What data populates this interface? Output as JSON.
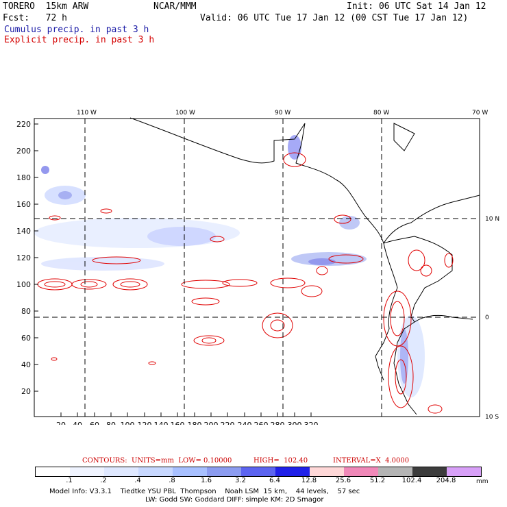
{
  "header": {
    "model": "TORERO  15km ARW",
    "org": "NCAR/MMM",
    "init": "Init: 06 UTC Sat 14 Jan 12",
    "fcst": "Fcst:   72 h",
    "valid": "Valid: 06 UTC Tue 17 Jan 12 (00 CST Tue 17 Jan 12)",
    "line_cumulus": "Cumulus precip. in past 3 h",
    "line_explicit": "Explicit precip. in past 3 h"
  },
  "map": {
    "lon_labels": [
      "110 W",
      "100 W",
      "90 W",
      "80 W",
      "70 W"
    ],
    "lat_labels": [
      "10 N",
      "0",
      "10 S"
    ],
    "y_ticks": [
      "220",
      "200",
      "180",
      "160",
      "140",
      "120",
      "100",
      "80",
      "60",
      "40",
      "20"
    ],
    "x_ticks": [
      "20",
      "40",
      "60",
      "80",
      "100",
      "120",
      "140",
      "160",
      "180",
      "200",
      "220",
      "240",
      "260",
      "280",
      "300",
      "320"
    ]
  },
  "caption": {
    "contours": "CONTOURS:  UNITS=mm  LOW= 0.10000",
    "high": "HIGH=  102.40",
    "interval": "INTERVAL=X  4.0000"
  },
  "colorbar": {
    "labels": [
      ".1",
      ".2",
      ".4",
      ".8",
      "1.6",
      "3.2",
      "6.4",
      "12.8",
      "25.6",
      "51.2",
      "102.4",
      "204.8"
    ],
    "unit": "mm",
    "colors": [
      "#ffffff",
      "#f0f4ff",
      "#dfe8ff",
      "#c8d8ff",
      "#a8c0ff",
      "#8c9cf0",
      "#5c64f0",
      "#2020e8",
      "#ffd8d8",
      "#f088b8",
      "#b4b4b4",
      "#3c3c3c",
      "#d8a0f8"
    ]
  },
  "footer": {
    "line1": "Model Info: V3.3.1    Tiedtke YSU PBL  Thompson    Noah LSM  15 km,    44 levels,    57 sec",
    "line2": "LW: Godd SW: Goddard DIFF: simple KM: 2D Smagor"
  }
}
